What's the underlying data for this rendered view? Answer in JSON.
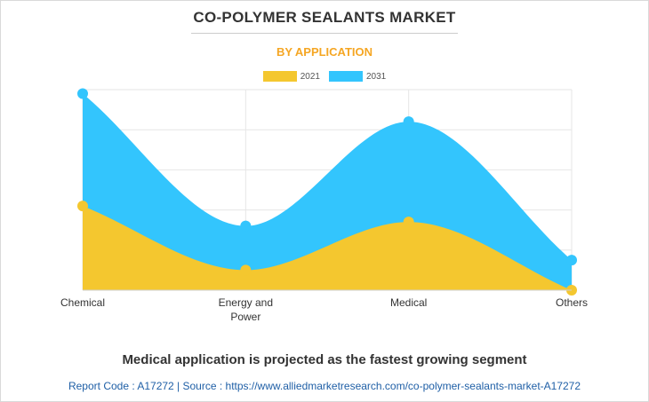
{
  "header": {
    "title": "CO-POLYMER SEALANTS MARKET",
    "subtitle": "BY APPLICATION"
  },
  "colors": {
    "accent": "#f5a623",
    "series_2021": "#f4c72f",
    "series_2031": "#33c5fd",
    "source_text": "#1f5fa6"
  },
  "chart_data": {
    "type": "area",
    "title": "CO-POLYMER SEALANTS MARKET",
    "subtitle": "BY APPLICATION",
    "categories": [
      "Chemical",
      "Energy and Power",
      "Medical",
      "Others"
    ],
    "series": [
      {
        "name": "2031",
        "values": [
          4.9,
          1.6,
          4.2,
          0.75
        ]
      },
      {
        "name": "2021",
        "values": [
          2.1,
          0.5,
          1.7,
          0.0
        ]
      }
    ],
    "ylim": [
      0,
      5
    ],
    "xlabel": "",
    "ylabel": "",
    "grid": true,
    "legend": "top-center",
    "stacked": false
  },
  "footnote": "Medical application is projected as the fastest growing segment",
  "source_line": "Report Code : A17272  |  Source : https://www.alliedmarketresearch.com/co-polymer-sealants-market-A17272"
}
